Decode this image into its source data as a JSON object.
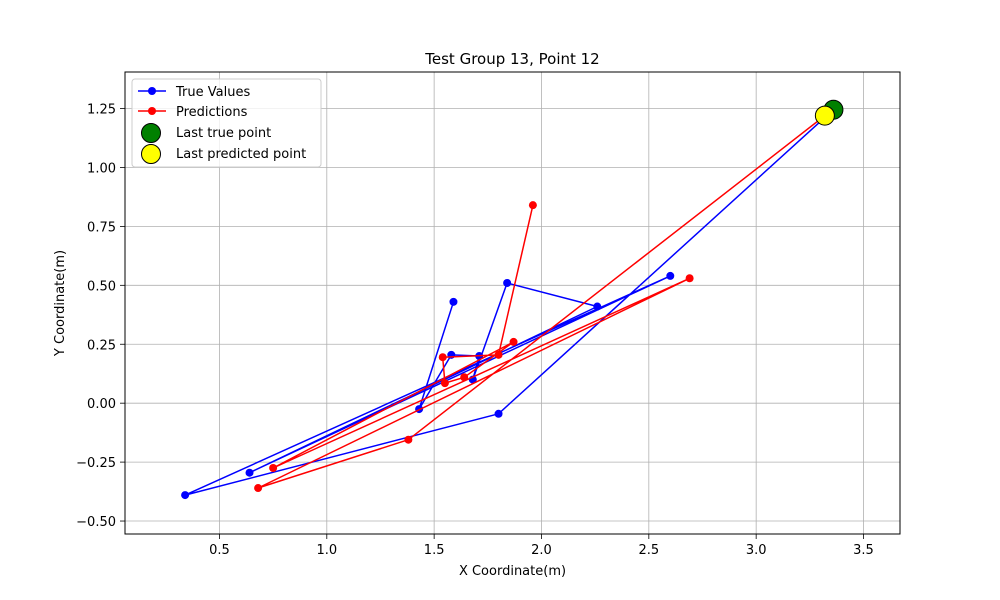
{
  "chart_data": {
    "type": "line",
    "title": "Test Group 13, Point 12",
    "xlabel": "X Coordinate(m)",
    "ylabel": "Y Coordinate(m)",
    "xlim": [
      0.06,
      3.67
    ],
    "ylim": [
      -0.555,
      1.405
    ],
    "xticks": [
      0.5,
      1.0,
      1.5,
      2.0,
      2.5,
      3.0,
      3.5
    ],
    "xtick_labels": [
      "0.5",
      "1.0",
      "1.5",
      "2.0",
      "2.5",
      "3.0",
      "3.5"
    ],
    "yticks": [
      -0.5,
      -0.25,
      0.0,
      0.25,
      0.5,
      0.75,
      1.0,
      1.25
    ],
    "ytick_labels": [
      "−0.50",
      "−0.25",
      "0.00",
      "0.25",
      "0.50",
      "0.75",
      "1.00",
      "1.25"
    ],
    "grid": true,
    "legend_position": "top-left",
    "series": [
      {
        "name": "True Values",
        "color": "#0000ff",
        "marker": "circle",
        "points": [
          [
            1.59,
            0.43
          ],
          [
            1.43,
            -0.025
          ],
          [
            1.58,
            0.205
          ],
          [
            1.71,
            0.2
          ],
          [
            1.68,
            0.1
          ],
          [
            1.84,
            0.51
          ],
          [
            2.26,
            0.41
          ],
          [
            0.64,
            -0.295
          ],
          [
            2.6,
            0.54
          ],
          [
            0.34,
            -0.39
          ],
          [
            1.8,
            -0.045
          ],
          [
            3.36,
            1.245
          ]
        ]
      },
      {
        "name": "Predictions",
        "color": "#ff0000",
        "marker": "circle",
        "points": [
          [
            1.96,
            0.84
          ],
          [
            1.8,
            0.205
          ],
          [
            1.54,
            0.195
          ],
          [
            1.55,
            0.085
          ],
          [
            1.64,
            0.11
          ],
          [
            1.87,
            0.26
          ],
          [
            0.75,
            -0.275
          ],
          [
            2.69,
            0.53
          ],
          [
            0.68,
            -0.36
          ],
          [
            1.38,
            -0.155
          ],
          [
            3.32,
            1.22
          ]
        ]
      }
    ],
    "highlights": [
      {
        "name": "Last true point",
        "color": "#008000",
        "x": 3.36,
        "y": 1.245
      },
      {
        "name": "Last predicted point",
        "color": "#ffff00",
        "x": 3.32,
        "y": 1.22
      }
    ]
  }
}
